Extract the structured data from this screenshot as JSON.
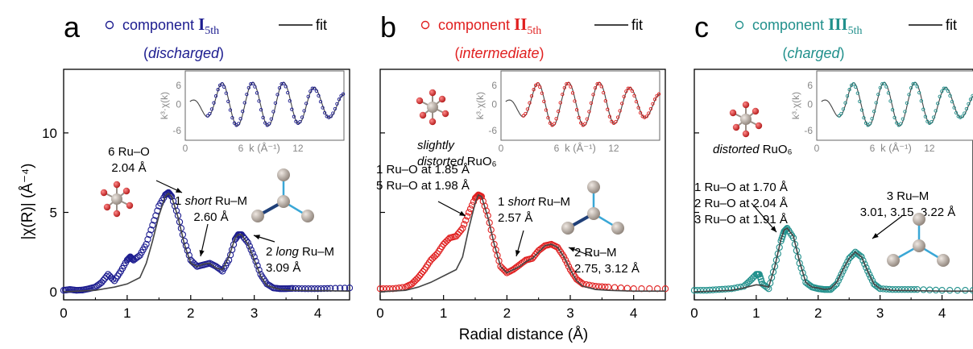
{
  "shared": {
    "ylabel": "|χ(R)| (Å⁻⁴)",
    "xlabel": "Radial distance (Å)",
    "legend_fit": "fit",
    "inset_ylabel": "k³·χ(k)",
    "inset_xlabel": "k (Å⁻¹)",
    "fit_color": "#444444",
    "atom_o_color": "#d22b2b",
    "atom_ru_color": "#b5aba3",
    "bond_color": "#3aa7d6",
    "bond_dark_color": "#1f3f78"
  },
  "chart_data": [
    {
      "type": "line",
      "panel_letter": "a",
      "legend_component": "component",
      "legend_roman": "I",
      "legend_sub": "5th",
      "state": "(discharged)",
      "data_color": "#1c1c8f",
      "xlim": [
        0,
        4.5
      ],
      "ylim": [
        -0.5,
        14
      ],
      "xticks": [
        0,
        1,
        2,
        3,
        4
      ],
      "yticks": [
        0,
        5,
        10
      ],
      "inset": {
        "xticks": [
          "0",
          "6",
          "12"
        ],
        "yticks": [
          "6",
          "0",
          "-6"
        ]
      },
      "series": [
        {
          "kind": "data",
          "x": [
            0,
            0.1,
            0.2,
            0.3,
            0.4,
            0.5,
            0.6,
            0.7,
            0.8,
            0.9,
            1.0,
            1.05,
            1.1,
            1.2,
            1.3,
            1.4,
            1.5,
            1.6,
            1.65,
            1.7,
            1.8,
            1.9,
            2.0,
            2.1,
            2.2,
            2.3,
            2.4,
            2.5,
            2.6,
            2.7,
            2.75,
            2.8,
            2.9,
            3.0,
            3.1,
            3.2,
            3.3,
            3.4,
            3.5,
            3.6,
            3.8,
            4.0,
            4.2,
            4.5
          ],
          "y": [
            0.1,
            0.15,
            0.1,
            0.12,
            0.2,
            0.3,
            0.6,
            1.1,
            0.7,
            1.3,
            2.0,
            2.2,
            2.0,
            2.3,
            3.0,
            4.2,
            5.4,
            6.1,
            6.25,
            6.0,
            4.8,
            3.2,
            2.0,
            1.6,
            1.7,
            1.8,
            1.6,
            1.3,
            2.0,
            3.3,
            3.6,
            3.6,
            3.1,
            2.2,
            1.1,
            0.5,
            0.25,
            0.2,
            0.2,
            0.22,
            0.2,
            0.2,
            0.22,
            0.25
          ]
        },
        {
          "kind": "fit",
          "x": [
            0,
            0.5,
            0.8,
            1.0,
            1.2,
            1.3,
            1.4,
            1.5,
            1.6,
            1.65,
            1.7,
            1.8,
            1.9,
            2.0,
            2.1,
            2.2,
            2.3,
            2.4,
            2.5,
            2.6,
            2.7,
            2.75,
            2.8,
            2.9,
            3.0,
            3.1,
            3.2,
            3.4,
            3.6,
            4.0,
            4.5
          ],
          "y": [
            0,
            0.1,
            0.3,
            0.5,
            0.9,
            1.8,
            3.2,
            4.8,
            6.0,
            6.2,
            6.0,
            4.7,
            3.0,
            1.8,
            1.6,
            1.75,
            1.8,
            1.5,
            1.4,
            2.2,
            3.4,
            3.6,
            3.6,
            3.0,
            2.0,
            1.0,
            0.4,
            0.15,
            0.1,
            0.08,
            0.05
          ]
        }
      ],
      "annotations": [
        {
          "lines": [
            "6 Ru–O",
            "2.04 Å"
          ]
        },
        {
          "lines": [
            "1 short Ru–M",
            "2.60 Å"
          ]
        },
        {
          "lines": [
            "2 long Ru–M",
            "3.09 Å"
          ]
        }
      ]
    },
    {
      "type": "line",
      "panel_letter": "b",
      "legend_component": "component",
      "legend_roman": "II",
      "legend_sub": "5th",
      "state": "(intermediate)",
      "data_color": "#e02020",
      "xlim": [
        0,
        4.5
      ],
      "ylim": [
        -0.5,
        14
      ],
      "xticks": [
        0,
        1,
        2,
        3,
        4
      ],
      "yticks": [
        0,
        5,
        10
      ],
      "inset": {
        "xticks": [
          "0",
          "6",
          "12"
        ],
        "yticks": [
          "6",
          "0",
          "-6"
        ]
      },
      "series": [
        {
          "kind": "data",
          "x": [
            0,
            0.2,
            0.4,
            0.5,
            0.6,
            0.7,
            0.8,
            0.9,
            1.0,
            1.1,
            1.2,
            1.3,
            1.4,
            1.5,
            1.55,
            1.6,
            1.7,
            1.8,
            1.9,
            2.0,
            2.1,
            2.2,
            2.3,
            2.4,
            2.5,
            2.6,
            2.7,
            2.8,
            2.9,
            3.0,
            3.1,
            3.2,
            3.4,
            3.6,
            4.0,
            4.5
          ],
          "y": [
            0.2,
            0.2,
            0.3,
            0.5,
            0.9,
            1.4,
            2.0,
            2.4,
            3.0,
            3.4,
            3.5,
            4.0,
            5.0,
            5.9,
            6.1,
            6.0,
            4.8,
            3.0,
            1.6,
            1.2,
            1.4,
            1.7,
            2.0,
            2.1,
            2.6,
            2.9,
            3.0,
            2.8,
            2.2,
            1.4,
            0.8,
            0.5,
            0.35,
            0.3,
            0.2,
            0.2
          ]
        },
        {
          "kind": "fit",
          "x": [
            0,
            0.4,
            0.6,
            0.8,
            1.0,
            1.2,
            1.3,
            1.4,
            1.5,
            1.55,
            1.6,
            1.7,
            1.8,
            1.9,
            2.0,
            2.1,
            2.2,
            2.3,
            2.4,
            2.5,
            2.6,
            2.7,
            2.8,
            2.9,
            3.0,
            3.1,
            3.2,
            3.4,
            3.6,
            4.0,
            4.5
          ],
          "y": [
            0,
            0.1,
            0.3,
            0.6,
            1.0,
            1.4,
            2.2,
            4.0,
            5.6,
            6.1,
            6.0,
            4.7,
            3.0,
            1.6,
            1.2,
            1.4,
            1.6,
            1.9,
            2.1,
            2.5,
            2.9,
            3.0,
            2.8,
            2.2,
            1.4,
            0.7,
            0.35,
            0.15,
            0.1,
            0.05,
            0.05
          ]
        }
      ],
      "annotations": [
        {
          "lines": [
            "slightly",
            "distorted RuO₆"
          ]
        },
        {
          "lines": [
            "1 Ru–O at 1.85 Å",
            "5 Ru–O at 1.98 Å"
          ]
        },
        {
          "lines": [
            "1 short Ru–M",
            "2.57 Å"
          ]
        },
        {
          "lines": [
            "2 Ru–M",
            "2.75, 3.12 Å"
          ]
        }
      ]
    },
    {
      "type": "line",
      "panel_letter": "c",
      "legend_component": "component",
      "legend_roman": "III",
      "legend_sub": "5th",
      "state": "(charged)",
      "data_color": "#21908c",
      "xlim": [
        0,
        4.5
      ],
      "ylim": [
        -0.5,
        14
      ],
      "xticks": [
        0,
        1,
        2,
        3,
        4
      ],
      "yticks": [
        0,
        5,
        10
      ],
      "inset": {
        "xticks": [
          "0",
          "6",
          "12"
        ],
        "yticks": [
          "6",
          "0",
          "-6"
        ]
      },
      "series": [
        {
          "kind": "data",
          "x": [
            0,
            0.2,
            0.4,
            0.6,
            0.8,
            0.9,
            1.0,
            1.05,
            1.1,
            1.2,
            1.3,
            1.4,
            1.45,
            1.5,
            1.6,
            1.7,
            1.8,
            1.9,
            2.0,
            2.1,
            2.2,
            2.3,
            2.4,
            2.5,
            2.6,
            2.7,
            2.8,
            2.9,
            3.0,
            3.2,
            3.4,
            3.6,
            4.0,
            4.5
          ],
          "y": [
            0.1,
            0.1,
            0.15,
            0.2,
            0.35,
            0.7,
            1.1,
            1.1,
            0.5,
            0.2,
            1.6,
            3.2,
            3.8,
            4.0,
            3.4,
            1.8,
            0.6,
            0.3,
            0.2,
            0.15,
            0.15,
            0.5,
            1.3,
            2.1,
            2.5,
            2.2,
            1.3,
            0.5,
            0.2,
            0.15,
            0.15,
            0.15,
            0.1,
            0.1
          ]
        },
        {
          "kind": "fit",
          "x": [
            0,
            0.6,
            0.8,
            1.0,
            1.1,
            1.2,
            1.3,
            1.4,
            1.45,
            1.5,
            1.6,
            1.7,
            1.8,
            1.9,
            2.0,
            2.1,
            2.2,
            2.3,
            2.4,
            2.5,
            2.6,
            2.7,
            2.8,
            2.9,
            3.0,
            3.2,
            3.6,
            4.0,
            4.5
          ],
          "y": [
            0,
            0.1,
            0.25,
            0.45,
            0.4,
            0.3,
            1.6,
            3.3,
            3.9,
            4.0,
            3.5,
            1.9,
            0.6,
            0.3,
            0.25,
            0.15,
            0.2,
            0.6,
            1.4,
            2.1,
            2.5,
            2.2,
            1.3,
            0.5,
            0.2,
            0.1,
            0.08,
            0.05,
            0.05
          ]
        }
      ],
      "annotations": [
        {
          "lines": [
            "distorted RuO₆"
          ]
        },
        {
          "lines": [
            "1 Ru–O at 1.70 Å",
            "2 Ru–O at 2.04 Å",
            "3 Ru–O at 1.91 Å"
          ]
        },
        {
          "lines": [
            "3 Ru–M",
            "3.01, 3.15, 3.22 Å"
          ]
        }
      ]
    }
  ]
}
